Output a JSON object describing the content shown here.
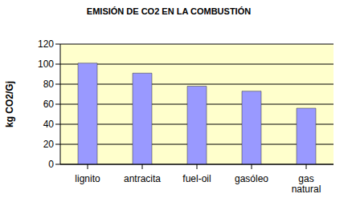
{
  "chart_data": {
    "type": "bar",
    "title": "EMISIÓN DE CO2 EN LA COMBUSTIÓN",
    "y_label": "kg CO2/Gj",
    "categories": [
      "lignito",
      "antracita",
      "fuel-oil",
      "gasóleo",
      "gas natural"
    ],
    "values": [
      101,
      91,
      78,
      73,
      56
    ],
    "color": "#9999ff",
    "ylim": [
      0,
      120
    ],
    "yticks": [
      0,
      20,
      40,
      60,
      80,
      100,
      120
    ],
    "grid": true
  }
}
